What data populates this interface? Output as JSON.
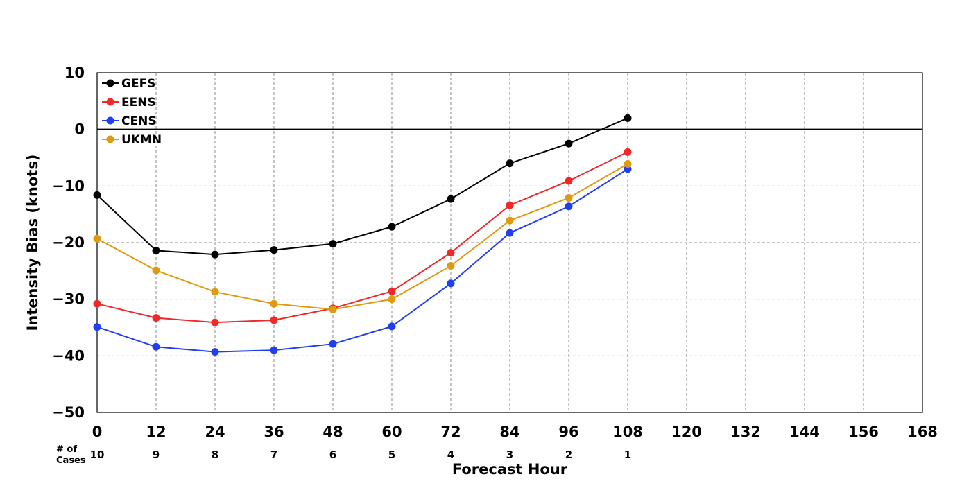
{
  "chart_data": {
    "type": "line",
    "title": "",
    "xlabel": "Forecast Hour",
    "ylabel": "Intensity Bias (knots)",
    "xlim": [
      0,
      168
    ],
    "ylim": [
      -50,
      10
    ],
    "x_ticks": [
      0,
      12,
      24,
      36,
      48,
      60,
      72,
      84,
      96,
      108,
      120,
      132,
      144,
      156,
      168
    ],
    "y_ticks": [
      10,
      0,
      -10,
      -20,
      -30,
      -40,
      -50
    ],
    "y_tick_labels": [
      "10",
      "0",
      "−10",
      "−20",
      "−30",
      "−40",
      "−50"
    ],
    "grid": true,
    "grid_style": "dashed",
    "zero_line": true,
    "legend_position": "top-left",
    "cases_label_line1": "# of",
    "cases_label_line2": "Cases",
    "num_cases": [
      10,
      9,
      8,
      7,
      6,
      5,
      4,
      3,
      2,
      1
    ],
    "x": [
      0,
      12,
      24,
      36,
      48,
      60,
      72,
      84,
      96,
      108
    ],
    "series": [
      {
        "name": "GEFS",
        "color": "#000000",
        "values": [
          -11.6,
          -21.4,
          -22.1,
          -21.3,
          -20.2,
          -17.2,
          -12.3,
          -6.0,
          -2.5,
          2.0
        ]
      },
      {
        "name": "EENS",
        "color": "#f02828",
        "values": [
          -30.8,
          -33.3,
          -34.1,
          -33.7,
          -31.6,
          -28.6,
          -21.8,
          -13.4,
          -9.1,
          -4.0
        ]
      },
      {
        "name": "CENS",
        "color": "#2040f0",
        "values": [
          -34.9,
          -38.4,
          -39.3,
          -39.0,
          -37.9,
          -34.8,
          -27.2,
          -18.3,
          -13.6,
          -7.0
        ]
      },
      {
        "name": "UKMN",
        "color": "#e09a10",
        "values": [
          -19.3,
          -24.9,
          -28.7,
          -30.8,
          -31.8,
          -30.0,
          -24.1,
          -16.1,
          -12.1,
          -6.1
        ]
      }
    ]
  }
}
